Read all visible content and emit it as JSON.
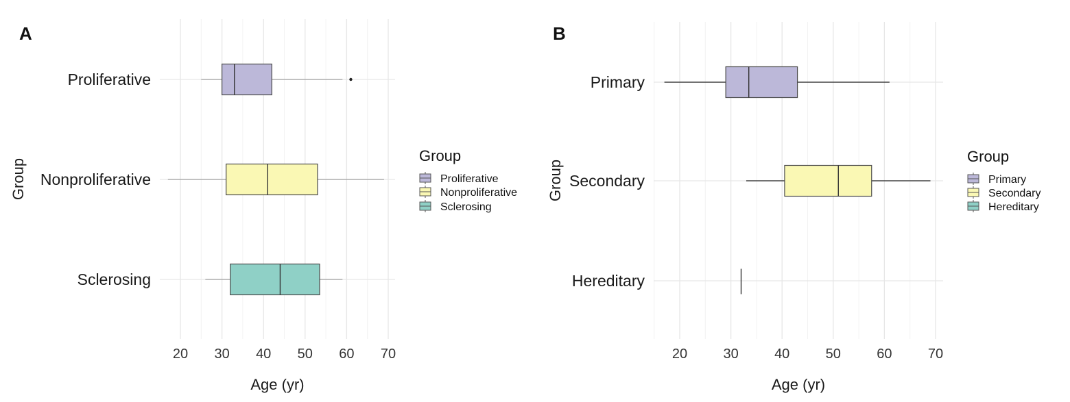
{
  "chart_data": [
    {
      "type": "boxplot",
      "panel_label": "A",
      "orientation": "horizontal",
      "xlabel": "Age (yr)",
      "ylabel": "Group",
      "xlim": [
        15,
        71
      ],
      "xticks": [
        20,
        30,
        40,
        50,
        60,
        70
      ],
      "grid": true,
      "legend": {
        "title": "Group",
        "position": "right",
        "entries": [
          "Proliferative",
          "Nonproliferative",
          "Sclerosing"
        ]
      },
      "categories": [
        "Proliferative",
        "Nonproliferative",
        "Sclerosing"
      ],
      "colors": [
        "#bcb8d9",
        "#faf8b4",
        "#8fd0c6"
      ],
      "whisker_color": "#a0a0a0",
      "boxes": [
        {
          "category": "Proliferative",
          "whisker_low": 25,
          "q1": 30,
          "median": 33,
          "q3": 42,
          "whisker_high": 59,
          "outliers": [
            61
          ]
        },
        {
          "category": "Nonproliferative",
          "whisker_low": 17,
          "q1": 31,
          "median": 41,
          "q3": 53,
          "whisker_high": 69,
          "outliers": []
        },
        {
          "category": "Sclerosing",
          "whisker_low": 26,
          "q1": 32,
          "median": 44,
          "q3": 53.5,
          "whisker_high": 59,
          "outliers": []
        }
      ]
    },
    {
      "type": "boxplot",
      "panel_label": "B",
      "orientation": "horizontal",
      "xlabel": "Age (yr)",
      "ylabel": "Group",
      "xlim": [
        15,
        71
      ],
      "xticks": [
        20,
        30,
        40,
        50,
        60,
        70
      ],
      "grid": true,
      "legend": {
        "title": "Group",
        "position": "right",
        "entries": [
          "Primary",
          "Secondary",
          "Hereditary"
        ]
      },
      "categories": [
        "Primary",
        "Secondary",
        "Hereditary"
      ],
      "colors": [
        "#bcb8d9",
        "#faf8b4",
        "#8fd0c6"
      ],
      "whisker_color": "#222222",
      "boxes": [
        {
          "category": "Primary",
          "whisker_low": 17,
          "q1": 29,
          "median": 33.5,
          "q3": 43,
          "whisker_high": 61,
          "outliers": []
        },
        {
          "category": "Secondary",
          "whisker_low": 33,
          "q1": 40.5,
          "median": 51,
          "q3": 57.5,
          "whisker_high": 69,
          "outliers": []
        },
        {
          "category": "Hereditary",
          "whisker_low": 32,
          "q1": 32,
          "median": 32,
          "q3": 32,
          "whisker_high": 32,
          "outliers": []
        }
      ]
    }
  ]
}
